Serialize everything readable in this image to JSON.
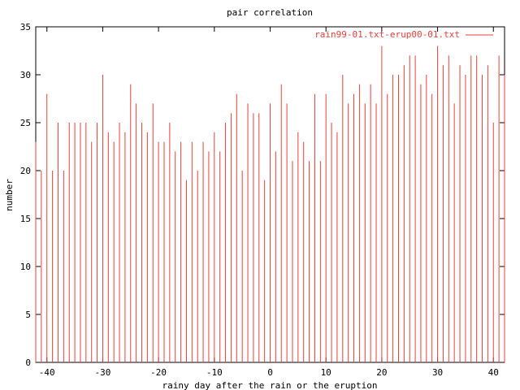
{
  "chart_data": {
    "type": "bar",
    "title": "pair correlation",
    "xlabel": "rainy day after the rain or the eruption",
    "ylabel": "number",
    "xlim": [
      -42,
      42
    ],
    "ylim": [
      0,
      35
    ],
    "xticks": [
      -40,
      -30,
      -20,
      -10,
      0,
      10,
      20,
      30,
      40
    ],
    "yticks": [
      0,
      5,
      10,
      15,
      20,
      25,
      30,
      35
    ],
    "grid": false,
    "legend_position": "top-right",
    "series": [
      {
        "name": "rain99-01.txt-erup00-01.txt",
        "color": "#e8413c",
        "x": [
          -42,
          -41,
          -40,
          -39,
          -38,
          -37,
          -36,
          -35,
          -34,
          -33,
          -32,
          -31,
          -30,
          -29,
          -28,
          -27,
          -26,
          -25,
          -24,
          -23,
          -22,
          -21,
          -20,
          -19,
          -18,
          -17,
          -16,
          -15,
          -14,
          -13,
          -12,
          -11,
          -10,
          -9,
          -8,
          -7,
          -6,
          -5,
          -4,
          -3,
          -2,
          -1,
          0,
          1,
          2,
          3,
          4,
          5,
          6,
          7,
          8,
          9,
          10,
          11,
          12,
          13,
          14,
          15,
          16,
          17,
          18,
          19,
          20,
          21,
          22,
          23,
          24,
          25,
          26,
          27,
          28,
          29,
          30,
          31,
          32,
          33,
          34,
          35,
          36,
          37,
          38,
          39,
          40,
          41,
          42
        ],
        "values": [
          23,
          20,
          28,
          20,
          25,
          20,
          25,
          25,
          25,
          25,
          23,
          25,
          30,
          24,
          23,
          25,
          24,
          29,
          27,
          25,
          24,
          27,
          23,
          23,
          25,
          22,
          23,
          19,
          23,
          20,
          23,
          22,
          24,
          22,
          25,
          26,
          28,
          20,
          27,
          26,
          26,
          19,
          27,
          22,
          29,
          27,
          21,
          24,
          23,
          21,
          28,
          21,
          28,
          25,
          24,
          30,
          27,
          28,
          29,
          27,
          29,
          27,
          33,
          28,
          30,
          30,
          31,
          32,
          32,
          29,
          30,
          28,
          33,
          31,
          32,
          27,
          31,
          30,
          32,
          32,
          30,
          31,
          25,
          32,
          30
        ]
      }
    ]
  }
}
